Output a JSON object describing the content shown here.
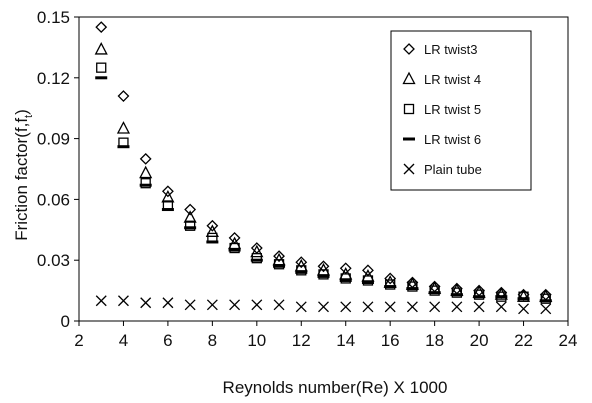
{
  "chart_data": {
    "type": "scatter",
    "title": "",
    "xlabel": "Reynolds number(Re) X 1000",
    "ylabel_main": "Friction factor(f,f",
    "ylabel_sub": "t",
    "ylabel_close": ")",
    "xlim": [
      2,
      24
    ],
    "ylim": [
      0,
      0.15
    ],
    "x_ticks": [
      "2",
      "4",
      "6",
      "8",
      "10",
      "12",
      "14",
      "16",
      "18",
      "20",
      "22",
      "24"
    ],
    "y_ticks": [
      "0",
      "0.03",
      "0.06",
      "0.09",
      "0.12",
      "0.15"
    ],
    "grid": false,
    "legend_position": "top-right",
    "x": [
      3,
      4,
      5,
      6,
      7,
      8,
      9,
      10,
      11,
      12,
      13,
      14,
      15,
      16,
      17,
      18,
      19,
      20,
      21,
      22,
      23
    ],
    "series": [
      {
        "name": "LR twist3",
        "marker": "diamond",
        "values": [
          0.145,
          0.111,
          0.08,
          0.064,
          0.055,
          0.047,
          0.041,
          0.036,
          0.032,
          0.029,
          0.027,
          0.026,
          0.025,
          0.021,
          0.019,
          0.017,
          0.016,
          0.015,
          0.014,
          0.013,
          0.013
        ]
      },
      {
        "name": "LR twist 4",
        "marker": "triangle",
        "values": [
          0.134,
          0.095,
          0.073,
          0.061,
          0.051,
          0.044,
          0.038,
          0.034,
          0.03,
          0.027,
          0.025,
          0.023,
          0.022,
          0.019,
          0.018,
          0.016,
          0.015,
          0.014,
          0.013,
          0.012,
          0.012
        ]
      },
      {
        "name": "LR twist 5",
        "marker": "square",
        "values": [
          0.125,
          0.088,
          0.068,
          0.057,
          0.047,
          0.041,
          0.036,
          0.031,
          0.028,
          0.025,
          0.023,
          0.021,
          0.02,
          0.018,
          0.017,
          0.015,
          0.014,
          0.013,
          0.012,
          0.012,
          0.011
        ]
      },
      {
        "name": "LR twist 6",
        "marker": "dash",
        "values": [
          0.12,
          0.086,
          0.067,
          0.055,
          0.046,
          0.039,
          0.035,
          0.03,
          0.027,
          0.024,
          0.022,
          0.02,
          0.019,
          0.017,
          0.016,
          0.014,
          0.013,
          0.012,
          0.012,
          0.011,
          0.01
        ]
      },
      {
        "name": "Plain tube",
        "marker": "x",
        "values": [
          0.01,
          0.01,
          0.009,
          0.009,
          0.008,
          0.008,
          0.008,
          0.008,
          0.008,
          0.007,
          0.007,
          0.007,
          0.007,
          0.007,
          0.007,
          0.007,
          0.007,
          0.007,
          0.007,
          0.006,
          0.006
        ]
      }
    ]
  }
}
